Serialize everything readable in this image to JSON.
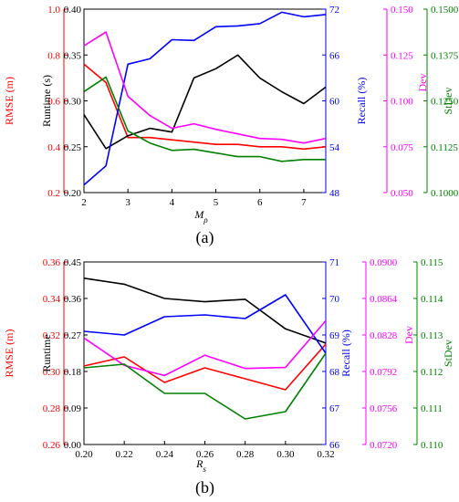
{
  "chart_data": [
    {
      "type": "line",
      "panel_label": "(a)",
      "xlabel_main": "M",
      "xlabel_sub": "ρ",
      "x": [
        2,
        2.5,
        3,
        3.5,
        4,
        4.5,
        5,
        5.5,
        6,
        6.5,
        7,
        7.5
      ],
      "xlim": [
        2,
        7.5
      ],
      "xticks": [
        2,
        3,
        4,
        5,
        6,
        7
      ],
      "xtick_labels": [
        "2",
        "3",
        "4",
        "5",
        "6",
        "7"
      ],
      "axes": [
        {
          "id": "rmse",
          "label": "RMSE (m)",
          "color": "#ff0000",
          "lim": [
            0.2,
            1.0
          ],
          "ticks": [
            0.2,
            0.4,
            0.6,
            0.8,
            1.0
          ],
          "tick_labels": [
            "0.2",
            "0.4",
            "0.6",
            "0.8",
            "1.0"
          ]
        },
        {
          "id": "runtime",
          "label": "Runtime (s)",
          "color": "#000000",
          "lim": [
            0.2,
            0.4
          ],
          "ticks": [
            0.2,
            0.25,
            0.3,
            0.35,
            0.4
          ],
          "tick_labels": [
            "0.20",
            "0.25",
            "0.30",
            "0.35",
            "0.40"
          ]
        },
        {
          "id": "recall",
          "label": "Recall (%)",
          "color": "#0000ff",
          "lim": [
            48,
            72
          ],
          "ticks": [
            48,
            54,
            60,
            66,
            72
          ],
          "tick_labels": [
            "48",
            "54",
            "60",
            "66",
            "72"
          ]
        },
        {
          "id": "dev",
          "label": "Dev",
          "color": "#ff00ff",
          "lim": [
            0.05,
            0.15
          ],
          "ticks": [
            0.05,
            0.075,
            0.1,
            0.125,
            0.15
          ],
          "tick_labels": [
            "0.050",
            "0.075",
            "0.100",
            "0.125",
            "0.150"
          ]
        },
        {
          "id": "stdev",
          "label": "StDev",
          "color": "#008000",
          "lim": [
            0.1,
            0.15
          ],
          "ticks": [
            0.1,
            0.1125,
            0.125,
            0.1375,
            0.15
          ],
          "tick_labels": [
            "0.1000",
            "0.1125",
            "0.1250",
            "0.1375",
            "0.1500"
          ]
        }
      ],
      "series": [
        {
          "axis": "rmse",
          "color": "#ff0000",
          "values": [
            0.76,
            0.68,
            0.44,
            0.44,
            0.43,
            0.42,
            0.41,
            0.41,
            0.4,
            0.4,
            0.39,
            0.4
          ]
        },
        {
          "axis": "runtime",
          "color": "#000000",
          "values": [
            0.285,
            0.248,
            0.262,
            0.27,
            0.266,
            0.325,
            0.335,
            0.35,
            0.325,
            0.31,
            0.297,
            0.315
          ]
        },
        {
          "axis": "recall",
          "color": "#0000ff",
          "values": [
            49.0,
            51.5,
            64.8,
            65.5,
            68.0,
            67.9,
            69.7,
            69.8,
            70.1,
            71.6,
            71.0,
            71.3
          ]
        },
        {
          "axis": "dev",
          "color": "#ff00ff",
          "values": [
            0.13,
            0.1375,
            0.1025,
            0.092,
            0.085,
            0.0875,
            0.0845,
            0.082,
            0.0795,
            0.079,
            0.077,
            0.0795
          ]
        },
        {
          "axis": "stdev",
          "color": "#008000",
          "values": [
            0.1275,
            0.1315,
            0.1168,
            0.1135,
            0.1115,
            0.1118,
            0.1108,
            0.1098,
            0.1098,
            0.1085,
            0.109,
            0.109
          ]
        }
      ]
    },
    {
      "type": "line",
      "panel_label": "(b)",
      "xlabel_main": "R",
      "xlabel_sub": "s",
      "x": [
        0.2,
        0.22,
        0.24,
        0.26,
        0.28,
        0.3,
        0.32
      ],
      "xlim": [
        0.2,
        0.32
      ],
      "xticks": [
        0.2,
        0.22,
        0.24,
        0.26,
        0.28,
        0.3,
        0.32
      ],
      "xtick_labels": [
        "0.20",
        "0.22",
        "0.24",
        "0.26",
        "0.28",
        "0.30",
        "0.32"
      ],
      "axes": [
        {
          "id": "rmse",
          "label": "RMSE (m)",
          "color": "#ff0000",
          "lim": [
            0.26,
            0.36
          ],
          "ticks": [
            0.26,
            0.28,
            0.3,
            0.32,
            0.34,
            0.36
          ],
          "tick_labels": [
            "0.26",
            "0.28",
            "0.30",
            "0.32",
            "0.34",
            "0.36"
          ]
        },
        {
          "id": "runtime",
          "label": "Runtime",
          "color": "#000000",
          "lim": [
            0.0,
            0.45
          ],
          "ticks": [
            0.0,
            0.09,
            0.18,
            0.27,
            0.36,
            0.45
          ],
          "tick_labels": [
            "0.00",
            "0.09",
            "0.18",
            "0.27",
            "0.36",
            "0.45"
          ]
        },
        {
          "id": "recall",
          "label": "Recall (%)",
          "color": "#0000ff",
          "lim": [
            66,
            71
          ],
          "ticks": [
            66,
            67,
            68,
            69,
            70,
            71
          ],
          "tick_labels": [
            "66",
            "67",
            "68",
            "69",
            "70",
            "71"
          ]
        },
        {
          "id": "dev",
          "label": "Dev",
          "color": "#ff00ff",
          "lim": [
            0.072,
            0.09
          ],
          "ticks": [
            0.072,
            0.0756,
            0.0792,
            0.0828,
            0.0864,
            0.09
          ],
          "tick_labels": [
            "0.0720",
            "0.0756",
            "0.0792",
            "0.0828",
            "0.0864",
            "0.0900"
          ]
        },
        {
          "id": "stdev",
          "label": "StDev",
          "color": "#008000",
          "lim": [
            0.11,
            0.115
          ],
          "ticks": [
            0.11,
            0.111,
            0.112,
            0.113,
            0.114,
            0.115
          ],
          "tick_labels": [
            "0.110",
            "0.111",
            "0.112",
            "0.113",
            "0.114",
            "0.115"
          ]
        }
      ],
      "series": [
        {
          "axis": "rmse",
          "color": "#ff0000",
          "values": [
            0.303,
            0.308,
            0.294,
            0.302,
            0.296,
            0.29,
            0.315
          ]
        },
        {
          "axis": "runtime",
          "color": "#000000",
          "values": [
            0.41,
            0.395,
            0.36,
            0.352,
            0.358,
            0.285,
            0.25
          ]
        },
        {
          "axis": "recall",
          "color": "#0000ff",
          "values": [
            69.1,
            69.0,
            69.5,
            69.55,
            69.45,
            70.1,
            68.5
          ]
        },
        {
          "axis": "dev",
          "color": "#ff00ff",
          "values": [
            0.0825,
            0.0798,
            0.0788,
            0.0808,
            0.0795,
            0.0796,
            0.0842
          ]
        },
        {
          "axis": "stdev",
          "color": "#008000",
          "values": [
            0.1121,
            0.1122,
            0.1114,
            0.1114,
            0.1107,
            0.1109,
            0.1125
          ]
        }
      ]
    }
  ]
}
